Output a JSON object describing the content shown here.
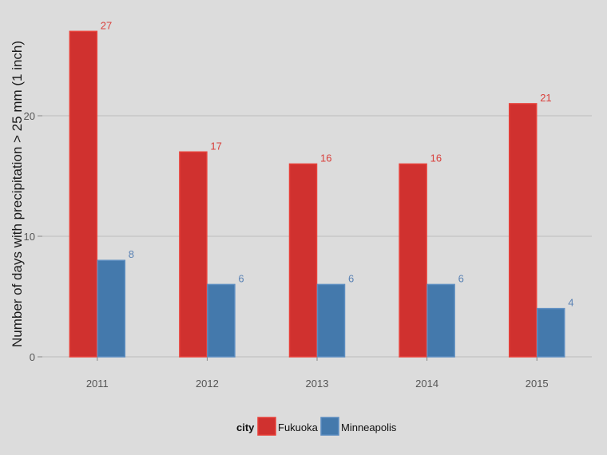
{
  "chart_data": {
    "type": "bar",
    "categories": [
      "2011",
      "2012",
      "2013",
      "2014",
      "2015"
    ],
    "series": [
      {
        "name": "Fukuoka",
        "values": [
          27,
          17,
          16,
          16,
          21
        ],
        "color": "#d0312f",
        "border": "#e8413a",
        "label_color": "#d9403c"
      },
      {
        "name": "Minneapolis",
        "values": [
          8,
          6,
          6,
          6,
          4
        ],
        "color": "#4479ac",
        "border": "#5b8cc0",
        "label_color": "#5a82b4"
      }
    ],
    "xlabel": "",
    "ylabel": "Number of days with precipitation > 25 mm (1 inch)",
    "ylim": [
      0,
      28
    ],
    "yticks": [
      0,
      10,
      20
    ],
    "grid": "horizontal",
    "legend": {
      "title": "city",
      "placement": "bottom"
    }
  }
}
